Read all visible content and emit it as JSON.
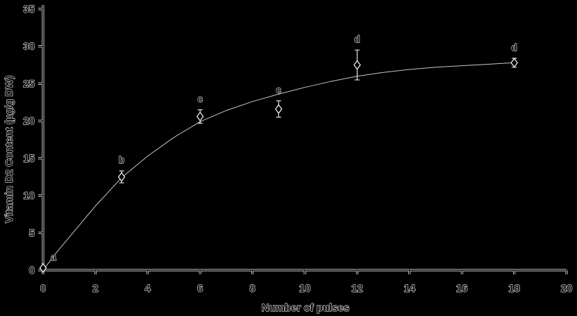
{
  "figure": {
    "background_color": "#000000",
    "outline_color": "#ffffff",
    "glyph_core_color": "#000000",
    "curve_color": "#c8c8c8",
    "errorbar_color": "#e6e6e6"
  },
  "chart_data": {
    "type": "scatter",
    "title": "",
    "xlabel": "Number of pulses",
    "ylabel": "Vitamin D2 Content (µg/g DW)",
    "xlim": [
      0,
      20
    ],
    "ylim": [
      0,
      35
    ],
    "xticks": [
      0,
      2,
      4,
      6,
      8,
      10,
      12,
      14,
      16,
      18,
      20
    ],
    "yticks": [
      0,
      5,
      10,
      15,
      20,
      25,
      30,
      35
    ],
    "grid": false,
    "legend": null,
    "marker": "diamond",
    "points": [
      {
        "x": 0,
        "y": 0.3,
        "err": 0,
        "letter": "a",
        "letter_dx": 15
      },
      {
        "x": 3,
        "y": 12.5,
        "err": 0.8,
        "letter": "b",
        "letter_dx": 0
      },
      {
        "x": 6,
        "y": 20.6,
        "err": 0.9,
        "letter": "c",
        "letter_dx": 0
      },
      {
        "x": 9,
        "y": 21.6,
        "err": 1.1,
        "letter": "c",
        "letter_dx": 0
      },
      {
        "x": 12,
        "y": 27.5,
        "err": 2.0,
        "letter": "d",
        "letter_dx": 0
      },
      {
        "x": 18,
        "y": 27.8,
        "err": 0.6,
        "letter": "d",
        "letter_dx": 0
      }
    ],
    "trend_curve": [
      [
        0,
        0
      ],
      [
        0.5,
        2.3
      ],
      [
        1,
        4.4
      ],
      [
        1.5,
        6.5
      ],
      [
        2,
        8.6
      ],
      [
        2.5,
        10.5
      ],
      [
        3,
        12.4
      ],
      [
        4,
        15.3
      ],
      [
        5,
        17.8
      ],
      [
        6,
        19.9
      ],
      [
        7,
        21.4
      ],
      [
        8,
        22.6
      ],
      [
        9,
        23.6
      ],
      [
        10,
        24.5
      ],
      [
        11,
        25.3
      ],
      [
        12,
        26.0
      ],
      [
        13,
        26.5
      ],
      [
        14,
        26.9
      ],
      [
        15,
        27.2
      ],
      [
        16,
        27.4
      ],
      [
        17,
        27.6
      ],
      [
        18,
        27.8
      ]
    ]
  }
}
